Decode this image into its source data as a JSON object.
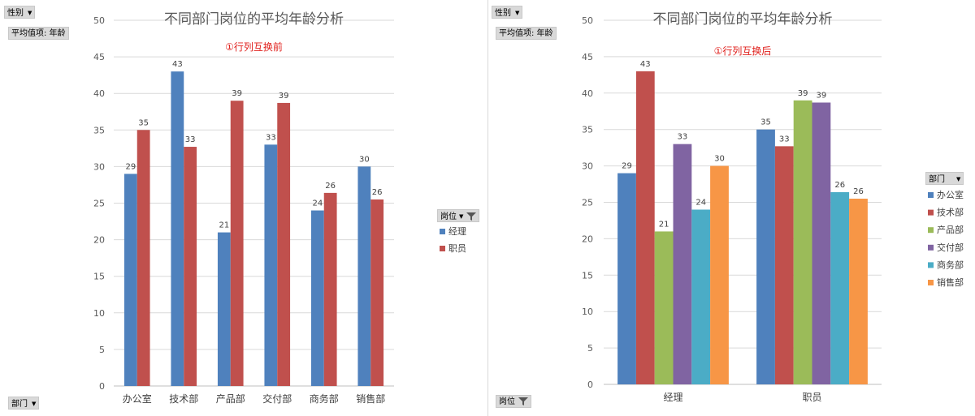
{
  "panels": [
    {
      "filter_button": {
        "label": "性别"
      },
      "value_button": {
        "label": "平均值项: 年龄"
      },
      "axis_button": {
        "label": "部门"
      },
      "legend_button": {
        "label": "岗位"
      }
    },
    {
      "filter_button": {
        "label": "性别"
      },
      "value_button": {
        "label": "平均值项: 年龄"
      },
      "axis_button": {
        "label": "岗位"
      },
      "legend_button": {
        "label": "部门"
      }
    }
  ],
  "chart_data": [
    {
      "type": "bar",
      "title": "不同部门岗位的平均年龄分析",
      "subtitle": "①行列互换前",
      "categories": [
        "办公室",
        "技术部",
        "产品部",
        "交付部",
        "商务部",
        "销售部"
      ],
      "series": [
        {
          "name": "经理",
          "color": "#4f81bd",
          "values": [
            29,
            43,
            21,
            33,
            24,
            30
          ],
          "labels": [
            "29",
            "43",
            "21",
            "33",
            "24",
            "30"
          ]
        },
        {
          "name": "职员",
          "color": "#c0504d",
          "values": [
            35,
            32.7,
            39,
            38.7,
            26.4,
            25.5
          ],
          "labels": [
            "35",
            "33",
            "39",
            "39",
            "26",
            "26"
          ]
        }
      ],
      "ylim": [
        0,
        50
      ],
      "yticks": [
        0,
        5,
        10,
        15,
        20,
        25,
        30,
        35,
        40,
        45,
        50
      ],
      "grid": true,
      "legend_position": "right"
    },
    {
      "type": "bar",
      "title": "不同部门岗位的平均年龄分析",
      "subtitle": "①行列互换后",
      "categories": [
        "经理",
        "职员"
      ],
      "series": [
        {
          "name": "办公室",
          "color": "#4f81bd",
          "values": [
            29,
            35
          ],
          "labels": [
            "29",
            "35"
          ]
        },
        {
          "name": "技术部",
          "color": "#c0504d",
          "values": [
            43,
            32.7
          ],
          "labels": [
            "43",
            "33"
          ]
        },
        {
          "name": "产品部",
          "color": "#9bbb59",
          "values": [
            21,
            39
          ],
          "labels": [
            "21",
            "39"
          ]
        },
        {
          "name": "交付部",
          "color": "#8064a2",
          "values": [
            33,
            38.7
          ],
          "labels": [
            "33",
            "39"
          ]
        },
        {
          "name": "商务部",
          "color": "#4bacc6",
          "values": [
            24,
            26.4
          ],
          "labels": [
            "24",
            "26"
          ]
        },
        {
          "name": "销售部",
          "color": "#f79646",
          "values": [
            30,
            25.5
          ],
          "labels": [
            "30",
            "26"
          ]
        }
      ],
      "ylim": [
        0,
        50
      ],
      "yticks": [
        0,
        5,
        10,
        15,
        20,
        25,
        30,
        35,
        40,
        45,
        50
      ],
      "grid": true,
      "legend_position": "right"
    }
  ]
}
